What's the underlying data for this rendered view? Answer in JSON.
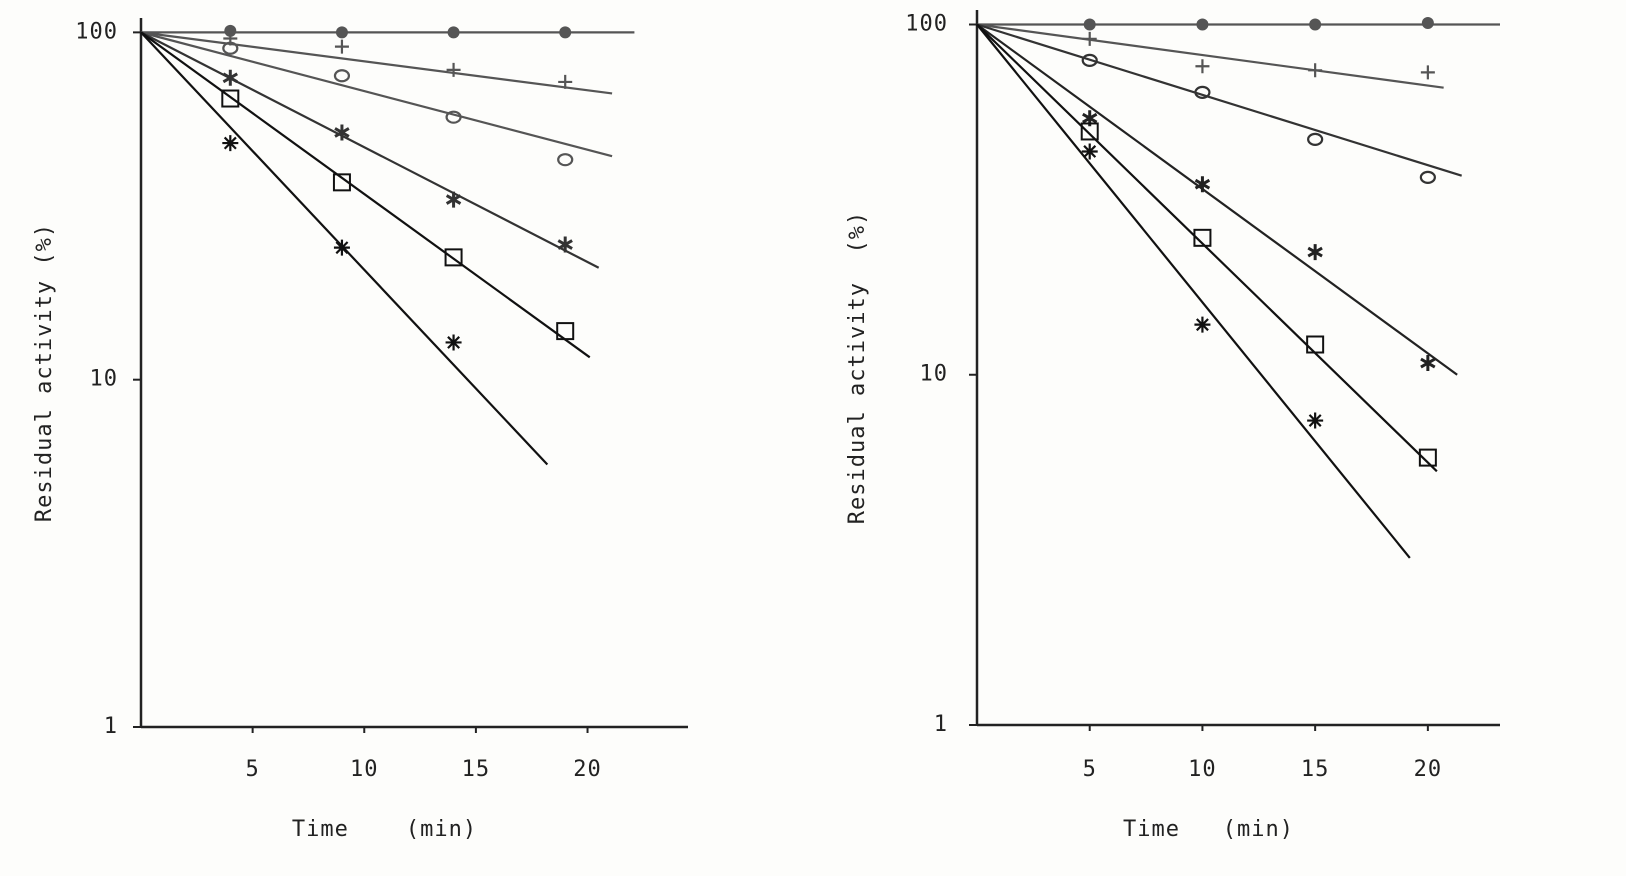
{
  "chart_data": [
    {
      "type": "scatter",
      "yscale": "log",
      "xlabel": "Time    (min)",
      "ylabel": "Residual activity (%)",
      "xlim": [
        0,
        24.5
      ],
      "xticks": [
        5,
        10,
        15,
        20
      ],
      "ylim": [
        1,
        110
      ],
      "yticks": [
        1,
        10,
        100
      ],
      "series": [
        {
          "marker": "filled-circle",
          "color": "#555555",
          "x": [
            4,
            9,
            14,
            19
          ],
          "values": [
            101,
            100,
            100,
            100
          ],
          "fit": {
            "x": [
              0,
              22.1
            ],
            "values": [
              100,
              100
            ]
          }
        },
        {
          "marker": "plus",
          "color": "#555555",
          "x": [
            4,
            9,
            14,
            19
          ],
          "values": [
            96,
            91,
            78,
            72
          ],
          "fit": {
            "x": [
              0,
              21.1
            ],
            "values": [
              100,
              66.7
            ]
          }
        },
        {
          "marker": "circle",
          "color": "#555555",
          "x": [
            4,
            9,
            14,
            19
          ],
          "values": [
            90,
            75,
            57,
            43
          ],
          "fit": {
            "x": [
              0,
              21.1
            ],
            "values": [
              100,
              44
            ]
          }
        },
        {
          "marker": "star",
          "color": "#333333",
          "x": [
            4,
            9,
            14,
            19
          ],
          "values": [
            74,
            51.5,
            33,
            24.5
          ],
          "fit": {
            "x": [
              0,
              20.5
            ],
            "values": [
              100,
              21
            ]
          }
        },
        {
          "marker": "square",
          "color": "#111111",
          "x": [
            4,
            9,
            14,
            19
          ],
          "values": [
            64.5,
            37,
            22.5,
            13.8
          ],
          "fit": {
            "x": [
              0,
              20.1
            ],
            "values": [
              100,
              11.6
            ]
          }
        },
        {
          "marker": "asterisk",
          "color": "#111111",
          "x": [
            4,
            9,
            14
          ],
          "values": [
            48,
            24,
            12.8
          ],
          "fit": {
            "x": [
              0,
              18.2
            ],
            "values": [
              100,
              5.7
            ]
          }
        }
      ]
    },
    {
      "type": "scatter",
      "yscale": "log",
      "xlabel": "Time   (min)",
      "ylabel": "Residual activity  (%)",
      "xlim": [
        0,
        23.2
      ],
      "xticks": [
        5,
        10,
        15,
        20
      ],
      "ylim": [
        1,
        110
      ],
      "yticks": [
        1,
        10,
        100
      ],
      "series": [
        {
          "marker": "filled-circle",
          "color": "#555555",
          "x": [
            5,
            10,
            15,
            20
          ],
          "values": [
            100,
            100,
            100,
            101
          ],
          "fit": {
            "x": [
              0,
              23.2
            ],
            "values": [
              100,
              100
            ]
          }
        },
        {
          "marker": "plus",
          "color": "#555555",
          "x": [
            5,
            10,
            15,
            20
          ],
          "values": [
            91,
            76,
            74,
            73
          ],
          "fit": {
            "x": [
              0,
              20.7
            ],
            "values": [
              100,
              66
            ]
          }
        },
        {
          "marker": "circle",
          "color": "#333333",
          "x": [
            5,
            10,
            15,
            20
          ],
          "values": [
            79,
            64,
            47,
            36.6
          ],
          "fit": {
            "x": [
              0,
              21.5
            ],
            "values": [
              100,
              37
            ]
          }
        },
        {
          "marker": "star",
          "color": "#222222",
          "x": [
            5,
            10,
            15,
            20
          ],
          "values": [
            54,
            35,
            22.4,
            10.8
          ],
          "fit": {
            "x": [
              0,
              21.3
            ],
            "values": [
              100,
              10
            ]
          }
        },
        {
          "marker": "square",
          "color": "#111111",
          "x": [
            5,
            10,
            15,
            20
          ],
          "values": [
            49.5,
            24.6,
            12.2,
            5.8
          ],
          "fit": {
            "x": [
              0,
              20.4
            ],
            "values": [
              100,
              5.3
            ]
          }
        },
        {
          "marker": "asterisk",
          "color": "#111111",
          "x": [
            5,
            10,
            15
          ],
          "values": [
            43.4,
            13.9,
            7.4
          ],
          "fit": {
            "x": [
              0,
              19.2
            ],
            "values": [
              100,
              3.0
            ]
          }
        }
      ]
    }
  ]
}
